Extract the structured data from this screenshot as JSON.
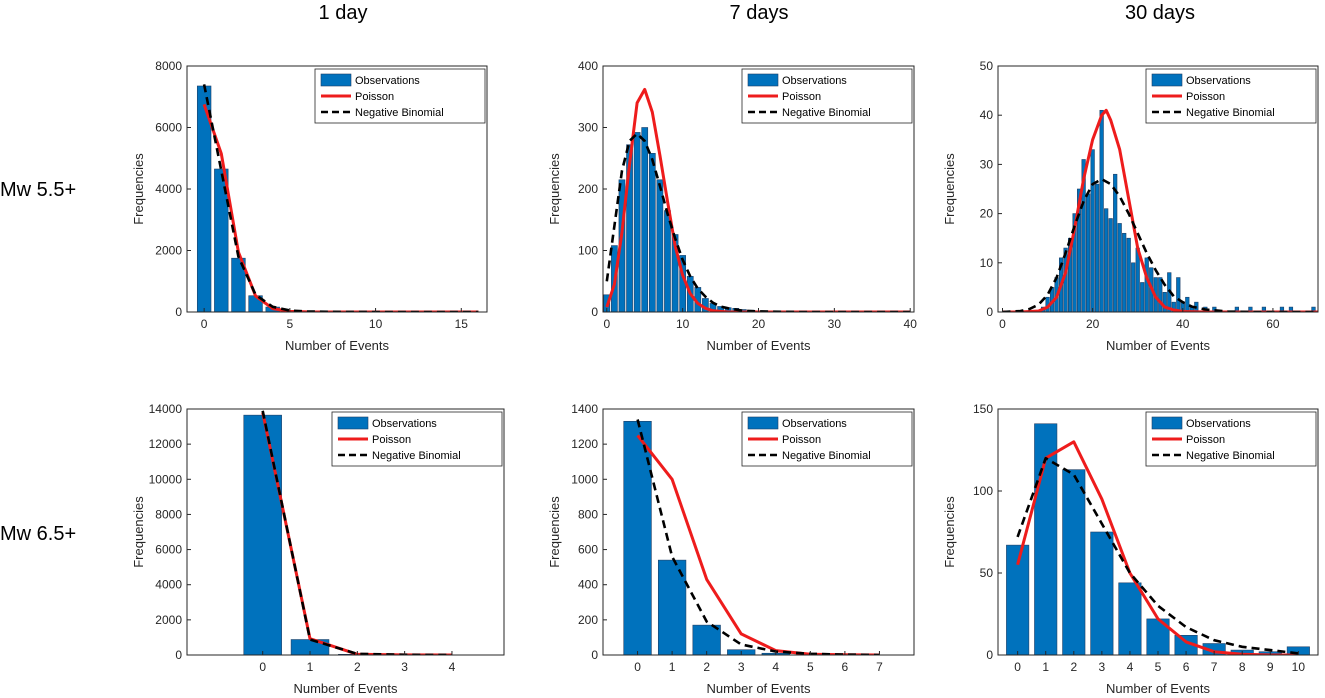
{
  "figure": {
    "column_titles": [
      "1 day",
      "7 days",
      "30 days"
    ],
    "row_labels": [
      "Mw 5.5+",
      "Mw 6.5+"
    ],
    "colors": {
      "bar": "#0072BD",
      "bar_edge": "#1f3f66",
      "poisson": "#ee1c1c",
      "negbin": "#000000",
      "axis": "#262626"
    }
  },
  "chart_data": [
    {
      "type": "bar",
      "title": "",
      "column": "1 day",
      "row": "Mw 5.5+",
      "xlabel": "Number of Events",
      "ylabel": "Frequencies",
      "xlim": [
        -1,
        16.5
      ],
      "ylim": [
        0,
        8000
      ],
      "xticks": [
        0,
        5,
        10,
        15
      ],
      "yticks": [
        0,
        2000,
        4000,
        6000,
        8000
      ],
      "legend": [
        "Observations",
        "Poisson",
        "Negative Binomial"
      ],
      "legend_position": "top-right",
      "bars": {
        "x": [
          0,
          1,
          2,
          3,
          4,
          5,
          6
        ],
        "values": [
          7350,
          4650,
          1750,
          530,
          160,
          45,
          10
        ],
        "width": 0.8
      },
      "series": [
        {
          "name": "Poisson",
          "x": [
            0,
            1,
            2,
            3,
            4,
            5,
            6,
            8,
            10,
            12,
            14,
            16
          ],
          "values": [
            6750,
            5150,
            1950,
            520,
            110,
            20,
            4,
            0,
            0,
            0,
            0,
            0
          ]
        },
        {
          "name": "Negative Binomial",
          "x": [
            0,
            1,
            2,
            3,
            4,
            5,
            6,
            8,
            10,
            12,
            14,
            16
          ],
          "values": [
            7400,
            4600,
            1800,
            560,
            170,
            50,
            15,
            2,
            0,
            0,
            0,
            0
          ]
        }
      ]
    },
    {
      "type": "bar",
      "title": "",
      "column": "7 days",
      "row": "Mw 5.5+",
      "xlabel": "Number of Events",
      "ylabel": "Frequencies",
      "xlim": [
        -0.5,
        40.5
      ],
      "ylim": [
        0,
        400
      ],
      "xticks": [
        0,
        10,
        20,
        30,
        40
      ],
      "yticks": [
        0,
        100,
        200,
        300,
        400
      ],
      "legend": [
        "Observations",
        "Poisson",
        "Negative Binomial"
      ],
      "legend_position": "top-right",
      "bars": {
        "x": [
          0,
          1,
          2,
          3,
          4,
          5,
          6,
          7,
          8,
          9,
          10,
          11,
          12,
          13,
          14,
          15,
          16,
          17,
          18,
          19,
          20,
          21,
          22,
          23,
          24,
          25
        ],
        "values": [
          28,
          108,
          215,
          272,
          292,
          300,
          258,
          215,
          165,
          126,
          92,
          58,
          40,
          22,
          14,
          9,
          7,
          6,
          4,
          3,
          2,
          1,
          1,
          1,
          0,
          0
        ],
        "width": 0.8
      },
      "series": [
        {
          "name": "Poisson",
          "x": [
            0,
            1,
            2,
            3,
            4,
            5,
            6,
            7,
            8,
            9,
            10,
            11,
            12,
            13,
            14,
            15,
            16,
            18,
            20,
            25,
            30,
            35,
            40
          ],
          "values": [
            8,
            45,
            130,
            240,
            340,
            362,
            325,
            255,
            180,
            108,
            60,
            30,
            14,
            6,
            2,
            1,
            0,
            0,
            0,
            0,
            0,
            0,
            0
          ]
        },
        {
          "name": "Negative Binomial",
          "x": [
            0,
            1,
            2,
            3,
            4,
            5,
            6,
            7,
            8,
            9,
            10,
            11,
            12,
            13,
            14,
            15,
            16,
            18,
            20,
            25,
            30,
            35,
            40
          ],
          "values": [
            50,
            140,
            230,
            278,
            290,
            278,
            248,
            205,
            160,
            120,
            85,
            58,
            38,
            25,
            15,
            9,
            6,
            2,
            1,
            0,
            0,
            0,
            0
          ]
        }
      ]
    },
    {
      "type": "bar",
      "title": "",
      "column": "30 days",
      "row": "Mw 5.5+",
      "xlabel": "Number of Events",
      "ylabel": "Frequencies",
      "xlim": [
        -1,
        70
      ],
      "ylim": [
        0,
        50
      ],
      "xticks": [
        0,
        20,
        40,
        60
      ],
      "yticks": [
        0,
        10,
        20,
        30,
        40,
        50
      ],
      "legend": [
        "Observations",
        "Poisson",
        "Negative Binomial"
      ],
      "legend_position": "top-right",
      "bars": {
        "x": [
          9,
          10,
          11,
          12,
          13,
          14,
          15,
          16,
          17,
          18,
          19,
          20,
          21,
          22,
          23,
          24,
          25,
          26,
          27,
          28,
          29,
          30,
          31,
          32,
          33,
          34,
          35,
          36,
          37,
          38,
          39,
          40,
          41,
          42,
          43,
          44,
          45,
          47,
          52,
          55,
          58,
          62,
          64,
          69
        ],
        "values": [
          1,
          3,
          5,
          7,
          11,
          13,
          15,
          20,
          25,
          31,
          24,
          33,
          26,
          41,
          21,
          19,
          28,
          18,
          16,
          15,
          10,
          13,
          6,
          11,
          9,
          7,
          7,
          4,
          8,
          2,
          7,
          2,
          3,
          1,
          2,
          0,
          1,
          1,
          1,
          1,
          1,
          1,
          1,
          1
        ],
        "width": 0.8
      },
      "series": [
        {
          "name": "Poisson",
          "x": [
            0,
            4,
            8,
            10,
            12,
            14,
            16,
            18,
            20,
            22,
            23,
            24,
            26,
            28,
            30,
            32,
            34,
            36,
            38,
            40,
            45,
            50,
            60,
            70
          ],
          "values": [
            0,
            0,
            0.2,
            1,
            3,
            8,
            17,
            27,
            35,
            40,
            41,
            39,
            33,
            23,
            13,
            7,
            3,
            1,
            0.4,
            0.1,
            0,
            0,
            0,
            0
          ]
        },
        {
          "name": "Negative Binomial",
          "x": [
            0,
            4,
            6,
            8,
            10,
            12,
            14,
            16,
            18,
            20,
            22,
            24,
            26,
            28,
            30,
            32,
            34,
            36,
            38,
            40,
            42,
            45,
            50,
            55,
            60,
            70
          ],
          "values": [
            0,
            0.2,
            0.6,
            1.5,
            3.5,
            7,
            12,
            17.5,
            22.5,
            26,
            27,
            26,
            23.5,
            20,
            16,
            12,
            8.5,
            5.5,
            3.2,
            2,
            1.1,
            0.5,
            0.1,
            0,
            0,
            0
          ]
        }
      ]
    },
    {
      "type": "bar",
      "title": "",
      "column": "1 day",
      "row": "Mw 6.5+",
      "xlabel": "Number of Events",
      "ylabel": "Frequencies",
      "xlim": [
        -1.6,
        5.1
      ],
      "ylim": [
        0,
        14000
      ],
      "xticks": [
        0,
        1,
        2,
        3,
        4
      ],
      "yticks": [
        0,
        2000,
        4000,
        6000,
        8000,
        10000,
        12000,
        14000
      ],
      "legend": [
        "Observations",
        "Poisson",
        "Negative Binomial"
      ],
      "legend_position": "top-right",
      "bars": {
        "x": [
          0,
          1,
          2
        ],
        "values": [
          13650,
          880,
          40
        ],
        "width": 0.8
      },
      "series": [
        {
          "name": "Poisson",
          "x": [
            0,
            1,
            2,
            3,
            4
          ],
          "values": [
            13800,
            930,
            40,
            5,
            0
          ]
        },
        {
          "name": "Negative Binomial",
          "x": [
            0,
            1,
            2,
            3,
            4
          ],
          "values": [
            13900,
            880,
            60,
            10,
            0
          ]
        }
      ]
    },
    {
      "type": "bar",
      "title": "",
      "column": "7 days",
      "row": "Mw 6.5+",
      "xlabel": "Number of Events",
      "ylabel": "Frequencies",
      "xlim": [
        -1,
        8
      ],
      "ylim": [
        0,
        1400
      ],
      "xticks": [
        0,
        1,
        2,
        3,
        4,
        5,
        6,
        7
      ],
      "yticks": [
        0,
        200,
        400,
        600,
        800,
        1000,
        1200,
        1400
      ],
      "legend": [
        "Observations",
        "Poisson",
        "Negative Binomial"
      ],
      "legend_position": "top-right",
      "bars": {
        "x": [
          0,
          1,
          2,
          3,
          4,
          5
        ],
        "values": [
          1330,
          540,
          170,
          30,
          10,
          4
        ],
        "width": 0.8
      },
      "series": [
        {
          "name": "Poisson",
          "x": [
            0,
            1,
            2,
            3,
            4,
            5,
            6,
            7
          ],
          "values": [
            1250,
            1000,
            430,
            120,
            25,
            4,
            1,
            0
          ]
        },
        {
          "name": "Negative Binomial",
          "x": [
            0,
            1,
            2,
            3,
            4,
            5,
            6,
            7
          ],
          "values": [
            1340,
            560,
            190,
            60,
            20,
            7,
            2,
            0
          ]
        }
      ]
    },
    {
      "type": "bar",
      "title": "",
      "column": "30 days",
      "row": "Mw 6.5+",
      "xlabel": "Number of Events",
      "ylabel": "Frequencies",
      "xlim": [
        -0.7,
        10.7
      ],
      "ylim": [
        0,
        150
      ],
      "xticks": [
        0,
        1,
        2,
        3,
        4,
        5,
        6,
        7,
        8,
        9,
        10
      ],
      "yticks": [
        0,
        50,
        100,
        150
      ],
      "legend": [
        "Observations",
        "Poisson",
        "Negative Binomial"
      ],
      "legend_position": "top-right",
      "bars": {
        "x": [
          0,
          1,
          2,
          3,
          4,
          5,
          6,
          7,
          8,
          9,
          10
        ],
        "values": [
          67,
          141,
          113,
          75,
          44,
          22,
          12,
          7,
          3,
          2,
          5
        ],
        "width": 0.8
      },
      "series": [
        {
          "name": "Poisson",
          "x": [
            0,
            1,
            2,
            3,
            4,
            5,
            6,
            7,
            8,
            9,
            10
          ],
          "values": [
            55,
            120,
            130,
            95,
            50,
            22,
            8,
            2,
            0.5,
            0,
            0
          ]
        },
        {
          "name": "Negative Binomial",
          "x": [
            0,
            1,
            2,
            3,
            4,
            5,
            6,
            7,
            8,
            9,
            10
          ],
          "values": [
            72,
            120,
            110,
            80,
            50,
            30,
            17,
            9,
            5,
            3,
            1
          ]
        }
      ]
    }
  ]
}
